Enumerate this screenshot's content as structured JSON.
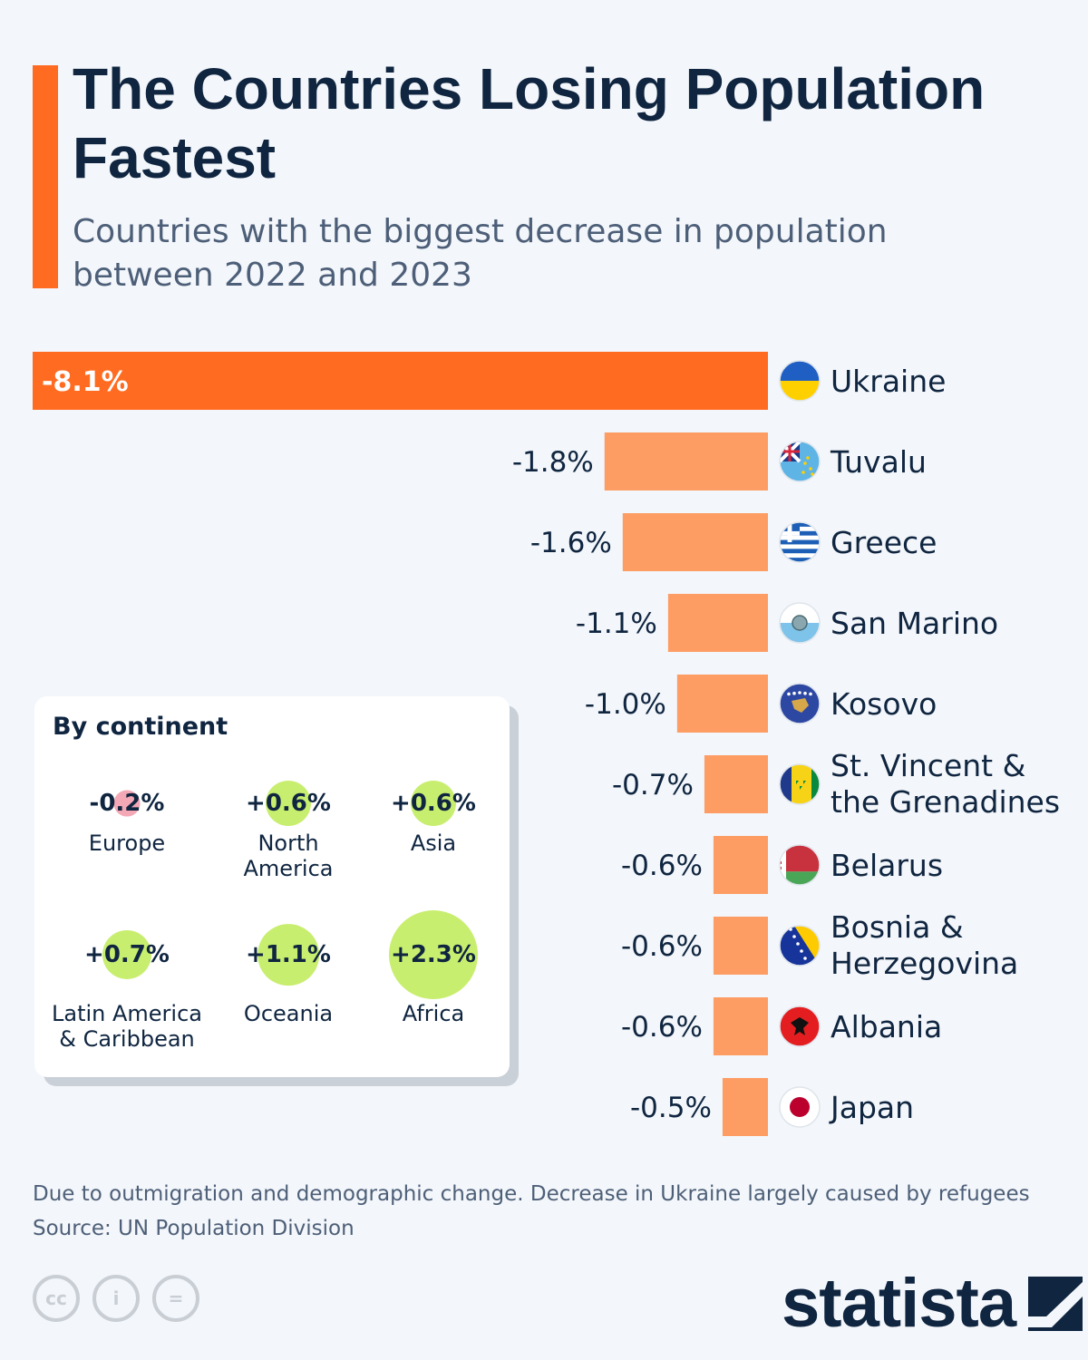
{
  "title": "The Countries Losing Population Fastest",
  "subtitle": "Countries with the biggest decrease in population between 2022 and 2023",
  "colors": {
    "accent": "#ff6b21",
    "bar_light": "#fd9d64",
    "text": "#0f2540",
    "positive_bubble": "#c8ee6f",
    "negative_bubble": "#f4a7b4"
  },
  "chart_data": {
    "type": "bar",
    "orientation": "horizontal",
    "unit": "%",
    "categories": [
      "Ukraine",
      "Tuvalu",
      "Greece",
      "San Marino",
      "Kosovo",
      "St. Vincent & the Grenadines",
      "Belarus",
      "Bosnia & Herzegovina",
      "Albania",
      "Japan"
    ],
    "values": [
      -8.1,
      -1.8,
      -1.6,
      -1.1,
      -1.0,
      -0.7,
      -0.6,
      -0.6,
      -0.6,
      -0.5
    ],
    "labels": [
      "-8.1%",
      "-1.8%",
      "-1.6%",
      "-1.1%",
      "-1.0%",
      "-0.7%",
      "-0.6%",
      "-0.6%",
      "-0.6%",
      "-0.5%"
    ],
    "country_lines": [
      [
        "Ukraine"
      ],
      [
        "Tuvalu"
      ],
      [
        "Greece"
      ],
      [
        "San Marino"
      ],
      [
        "Kosovo"
      ],
      [
        "St. Vincent &",
        "the Grenadines"
      ],
      [
        "Belarus"
      ],
      [
        "Bosnia &",
        "Herzegovina"
      ],
      [
        "Albania"
      ],
      [
        "Japan"
      ]
    ],
    "flags": [
      "ukraine-flag",
      "tuvalu-flag",
      "greece-flag",
      "san-marino-flag",
      "kosovo-flag",
      "st-vincent-flag",
      "belarus-flag",
      "bosnia-flag",
      "albania-flag",
      "japan-flag"
    ],
    "highlight_index": 0
  },
  "continents": {
    "title": "By continent",
    "items": [
      {
        "name": "Europe",
        "value": -0.2,
        "label": "-0.2%"
      },
      {
        "name": "North\nAmerica",
        "value": 0.6,
        "label": "+0.6%"
      },
      {
        "name": "Asia",
        "value": 0.6,
        "label": "+0.6%"
      },
      {
        "name": "Latin America\n& Caribbean",
        "value": 0.7,
        "label": "+0.7%"
      },
      {
        "name": "Oceania",
        "value": 1.1,
        "label": "+1.1%"
      },
      {
        "name": "Africa",
        "value": 2.3,
        "label": "+2.3%"
      }
    ]
  },
  "footnote": "Due to outmigration and demographic change. Decrease in Ukraine largely caused by refugees",
  "source": "Source: UN Population Division",
  "license_icons": [
    "cc-icon",
    "attribution-icon",
    "no-derivatives-icon"
  ],
  "license_glyphs": {
    "cc": "cc",
    "attribution": "i",
    "nd": "="
  },
  "logo_text": "statista"
}
